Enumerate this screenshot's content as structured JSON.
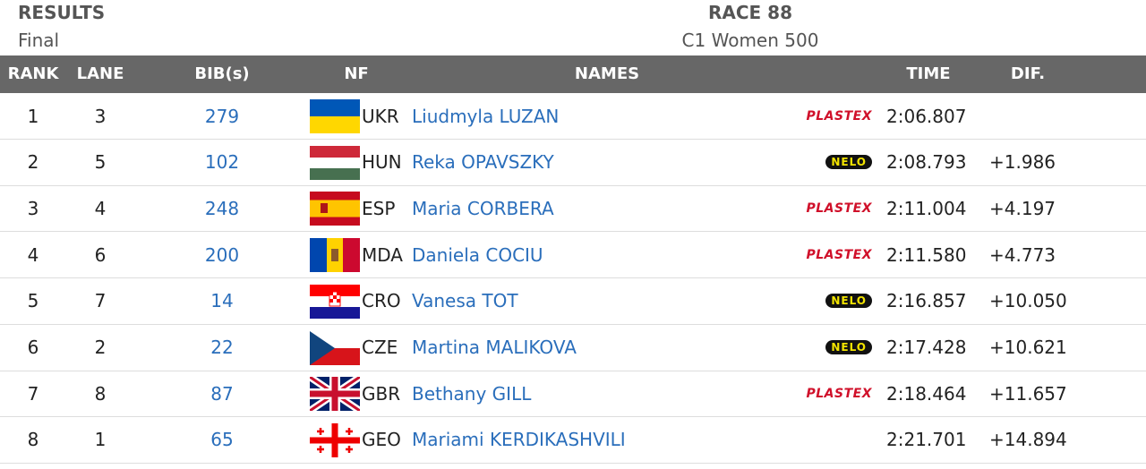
{
  "header": {
    "title": "RESULTS",
    "phase": "Final",
    "race": "RACE 88",
    "event": "C1 Women 500"
  },
  "table": {
    "columns": [
      "RANK",
      "LANE",
      "BIB(s)",
      "NF",
      "NAMES",
      "TIME",
      "DIF."
    ],
    "rows": [
      {
        "rank": 1,
        "lane": 3,
        "bib": 279,
        "nf": "UKR",
        "name": "Liudmyla LUZAN",
        "brand": "PLASTEX",
        "time": "2:06.807",
        "dif": null
      },
      {
        "rank": 2,
        "lane": 5,
        "bib": 102,
        "nf": "HUN",
        "name": "Reka OPAVSZKY",
        "brand": "NELO",
        "time": "2:08.793",
        "dif": "+1.986"
      },
      {
        "rank": 3,
        "lane": 4,
        "bib": 248,
        "nf": "ESP",
        "name": "Maria CORBERA",
        "brand": "PLASTEX",
        "time": "2:11.004",
        "dif": "+4.197"
      },
      {
        "rank": 4,
        "lane": 6,
        "bib": 200,
        "nf": "MDA",
        "name": "Daniela COCIU",
        "brand": "PLASTEX",
        "time": "2:11.580",
        "dif": "+4.773"
      },
      {
        "rank": 5,
        "lane": 7,
        "bib": 14,
        "nf": "CRO",
        "name": "Vanesa TOT",
        "brand": "NELO",
        "time": "2:16.857",
        "dif": "+10.050"
      },
      {
        "rank": 6,
        "lane": 2,
        "bib": 22,
        "nf": "CZE",
        "name": "Martina MALIKOVA",
        "brand": "NELO",
        "time": "2:17.428",
        "dif": "+10.621"
      },
      {
        "rank": 7,
        "lane": 8,
        "bib": 87,
        "nf": "GBR",
        "name": "Bethany GILL",
        "brand": "PLASTEX",
        "time": "2:18.464",
        "dif": "+11.657"
      },
      {
        "rank": 8,
        "lane": 1,
        "bib": 65,
        "nf": "GEO",
        "name": "Mariami KERDIKASHVILI",
        "brand": null,
        "time": "2:21.701",
        "dif": "+14.894"
      }
    ]
  }
}
